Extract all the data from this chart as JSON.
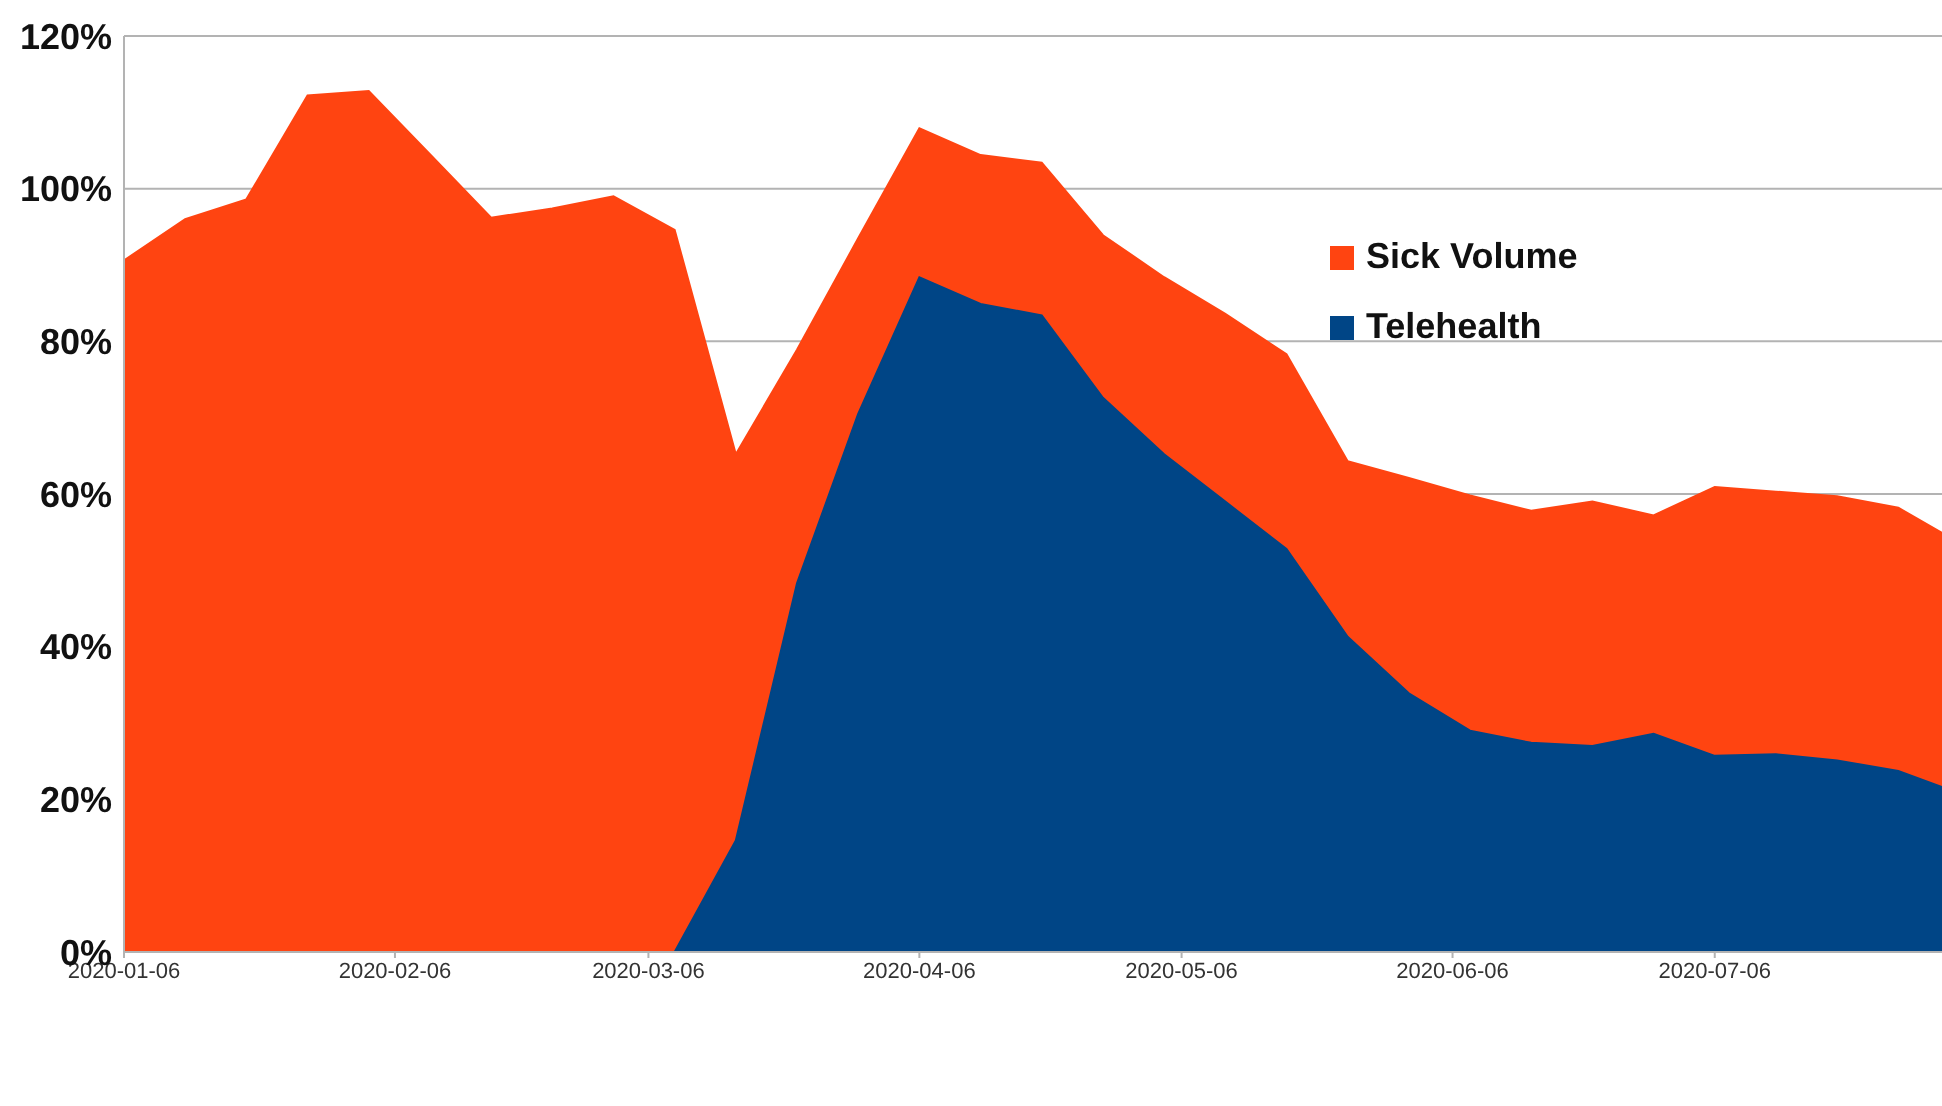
{
  "chart_data": {
    "type": "area",
    "x": [
      "2020-01-06",
      "2020-01-13",
      "2020-01-20",
      "2020-01-27",
      "2020-02-03",
      "2020-02-10",
      "2020-02-17",
      "2020-02-24",
      "2020-03-02",
      "2020-03-09",
      "2020-03-16",
      "2020-03-23",
      "2020-03-30",
      "2020-04-06",
      "2020-04-13",
      "2020-04-20",
      "2020-04-27",
      "2020-05-04",
      "2020-05-11",
      "2020-05-18",
      "2020-05-25",
      "2020-06-01",
      "2020-06-08",
      "2020-06-15",
      "2020-06-22",
      "2020-06-29",
      "2020-07-06",
      "2020-07-13",
      "2020-07-20",
      "2020-07-27",
      "2020-08-01"
    ],
    "series": [
      {
        "name": "Sick Volume",
        "color": "#ff4411",
        "values": [
          90.6,
          96,
          98.6,
          112.2,
          112.8,
          104.5,
          96.2,
          97.4,
          99,
          94.6,
          65.2,
          78.9,
          93.5,
          107.9,
          104.4,
          103.4,
          93.9,
          88.4,
          83.6,
          78.3,
          64.3,
          62.1,
          59.8,
          57.8,
          59,
          57.2,
          60.9,
          60.3,
          59.7,
          58.2,
          54.9
        ]
      },
      {
        "name": "Telehealth",
        "color": "#004586",
        "values": [
          0,
          0,
          0,
          0,
          0,
          0,
          0,
          0,
          0,
          0,
          14.6,
          48.3,
          70.5,
          88.4,
          84.9,
          83.4,
          72.6,
          65.2,
          59,
          52.8,
          41.3,
          33.9,
          29,
          27.4,
          27,
          28.6,
          25.7,
          25.9,
          25.1,
          23.7,
          21.6
        ]
      }
    ],
    "xlim": [
      "2020-01-06",
      "2020-08-01"
    ],
    "xticks": [
      "2020-01-06",
      "2020-02-06",
      "2020-03-06",
      "2020-04-06",
      "2020-05-06",
      "2020-06-06",
      "2020-07-06"
    ],
    "ylim": [
      0,
      120
    ],
    "yticks": [
      {
        "value": 0,
        "label": "0%"
      },
      {
        "value": 20,
        "label": "20%"
      },
      {
        "value": 40,
        "label": "40%"
      },
      {
        "value": 60,
        "label": "60%"
      },
      {
        "value": 80,
        "label": "80%"
      },
      {
        "value": 100,
        "label": "100%"
      },
      {
        "value": 120,
        "label": "120%"
      }
    ],
    "grid": "y",
    "legend": "right"
  }
}
